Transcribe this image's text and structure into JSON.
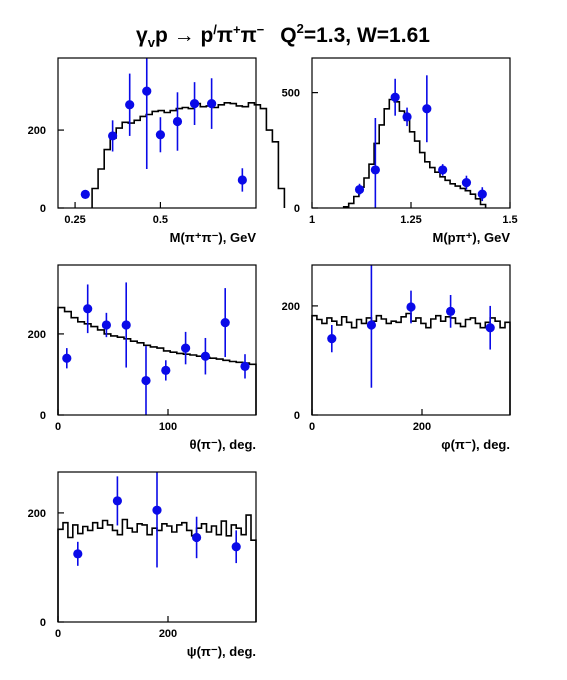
{
  "title": {
    "prefix": "γ",
    "sub": "v",
    "rest": "p → p",
    "prime": "/",
    "pi1": "π",
    "sup1": "+",
    "pi2": "π",
    "sup2": "−",
    "q": "Q",
    "qexp": "2",
    "qval": "=1.3, W=1.61"
  },
  "chart_data": [
    {
      "id": "m-pipi",
      "type": "histogram-with-points",
      "xlabel": "M(π⁺π⁻), GeV",
      "xlim": [
        0.2,
        0.78
      ],
      "ylim": [
        0,
        385
      ],
      "xticks": [
        {
          "v": 0.25,
          "t": "0.25"
        },
        {
          "v": 0.5,
          "t": "0.5"
        }
      ],
      "yticks": [
        {
          "v": 0,
          "t": "0"
        },
        {
          "v": 200,
          "t": "200"
        }
      ],
      "hist": {
        "x0": 0.3,
        "dx": 0.0176,
        "values": [
          50,
          100,
          150,
          180,
          205,
          220,
          218,
          225,
          235,
          240,
          248,
          250,
          245,
          250,
          255,
          258,
          255,
          268,
          260,
          262,
          258,
          265,
          270,
          268,
          262,
          260,
          270,
          265,
          255,
          200,
          170,
          50
        ]
      },
      "points": [
        {
          "x": 0.28,
          "y": 35,
          "err": 8
        },
        {
          "x": 0.36,
          "y": 185,
          "err": 40
        },
        {
          "x": 0.41,
          "y": 265,
          "err": 80
        },
        {
          "x": 0.46,
          "y": 300,
          "err": 200
        },
        {
          "x": 0.5,
          "y": 188,
          "err": 45
        },
        {
          "x": 0.55,
          "y": 222,
          "err": 75
        },
        {
          "x": 0.6,
          "y": 268,
          "err": 55
        },
        {
          "x": 0.65,
          "y": 268,
          "err": 65
        },
        {
          "x": 0.74,
          "y": 72,
          "err": 30
        }
      ]
    },
    {
      "id": "m-ppi",
      "type": "histogram-with-points",
      "xlabel": "M(pπ⁺), GeV",
      "xlim": [
        1.0,
        1.5
      ],
      "ylim": [
        0,
        650
      ],
      "xticks": [
        {
          "v": 1,
          "t": "1"
        },
        {
          "v": 1.25,
          "t": "1.25"
        },
        {
          "v": 1.5,
          "t": "1.5"
        }
      ],
      "yticks": [
        {
          "v": 0,
          "t": "0"
        },
        {
          "v": 500,
          "t": "500"
        }
      ],
      "hist": {
        "x0": 1.08,
        "dx": 0.0128,
        "values": [
          5,
          20,
          50,
          90,
          130,
          190,
          280,
          360,
          430,
          470,
          460,
          420,
          380,
          330,
          290,
          240,
          200,
          175,
          155,
          135,
          120,
          105,
          95,
          85,
          75,
          60,
          40,
          15
        ]
      },
      "points": [
        {
          "x": 1.12,
          "y": 80,
          "err": 25
        },
        {
          "x": 1.16,
          "y": 165,
          "err": 225
        },
        {
          "x": 1.21,
          "y": 480,
          "err": 80
        },
        {
          "x": 1.24,
          "y": 395,
          "err": 40
        },
        {
          "x": 1.29,
          "y": 430,
          "err": 145
        },
        {
          "x": 1.33,
          "y": 165,
          "err": 25
        },
        {
          "x": 1.39,
          "y": 110,
          "err": 30
        },
        {
          "x": 1.43,
          "y": 60,
          "err": 30
        }
      ]
    },
    {
      "id": "theta",
      "type": "histogram-with-points",
      "xlabel": "θ(π⁻), deg.",
      "xlim": [
        0,
        180
      ],
      "ylim": [
        0,
        370
      ],
      "xticks": [
        {
          "v": 0,
          "t": "0"
        },
        {
          "v": 100,
          "t": "100"
        }
      ],
      "yticks": [
        {
          "v": 0,
          "t": "0"
        },
        {
          "v": 200,
          "t": "200"
        }
      ],
      "hist": {
        "x0": 0,
        "dx": 6,
        "values": [
          265,
          255,
          240,
          230,
          225,
          218,
          210,
          200,
          195,
          192,
          188,
          182,
          178,
          172,
          168,
          165,
          158,
          155,
          152,
          150,
          148,
          145,
          142,
          140,
          138,
          135,
          132,
          130,
          128,
          125
        ]
      },
      "points": [
        {
          "x": 8,
          "y": 140,
          "err": 25
        },
        {
          "x": 27,
          "y": 262,
          "err": 60
        },
        {
          "x": 44,
          "y": 222,
          "err": 30
        },
        {
          "x": 62,
          "y": 222,
          "err": 105
        },
        {
          "x": 80,
          "y": 85,
          "err": 85
        },
        {
          "x": 98,
          "y": 110,
          "err": 25
        },
        {
          "x": 116,
          "y": 165,
          "err": 40
        },
        {
          "x": 134,
          "y": 145,
          "err": 45
        },
        {
          "x": 152,
          "y": 228,
          "err": 85
        },
        {
          "x": 170,
          "y": 120,
          "err": 30
        }
      ]
    },
    {
      "id": "phi",
      "type": "histogram-with-points",
      "xlabel": "φ(π⁻), deg.",
      "xlim": [
        0,
        360
      ],
      "ylim": [
        0,
        275
      ],
      "xticks": [
        {
          "v": 0,
          "t": "0"
        },
        {
          "v": 200,
          "t": "200"
        }
      ],
      "yticks": [
        {
          "v": 0,
          "t": "0"
        },
        {
          "v": 200,
          "t": "200"
        }
      ],
      "hist": {
        "x0": 0,
        "dx": 9,
        "values": [
          182,
          175,
          168,
          178,
          172,
          165,
          180,
          170,
          160,
          175,
          168,
          178,
          172,
          182,
          176,
          168,
          172,
          170,
          180,
          186,
          172,
          178,
          168,
          160,
          176,
          182,
          172,
          180,
          178,
          168,
          162,
          175,
          178,
          168,
          160,
          170,
          178,
          172,
          160,
          170
        ]
      },
      "points": [
        {
          "x": 36,
          "y": 140,
          "err": 25
        },
        {
          "x": 108,
          "y": 165,
          "err": 115
        },
        {
          "x": 180,
          "y": 198,
          "err": 30
        },
        {
          "x": 252,
          "y": 190,
          "err": 30
        },
        {
          "x": 324,
          "y": 160,
          "err": 40
        }
      ]
    },
    {
      "id": "psi",
      "type": "histogram-with-points",
      "xlabel": "ψ(π⁻), deg.",
      "xlim": [
        0,
        360
      ],
      "ylim": [
        0,
        275
      ],
      "xticks": [
        {
          "v": 0,
          "t": "0"
        },
        {
          "v": 200,
          "t": "200"
        }
      ],
      "yticks": [
        {
          "v": 0,
          "t": "0"
        },
        {
          "v": 200,
          "t": "200"
        }
      ],
      "hist": {
        "x0": 0,
        "dx": 9,
        "values": [
          170,
          182,
          155,
          178,
          162,
          175,
          168,
          182,
          172,
          186,
          178,
          168,
          160,
          188,
          172,
          165,
          180,
          178,
          160,
          172,
          168,
          180,
          176,
          165,
          178,
          182,
          168,
          158,
          172,
          180,
          165,
          176,
          160,
          185,
          158,
          178,
          172,
          160,
          196,
          150
        ]
      },
      "points": [
        {
          "x": 36,
          "y": 125,
          "err": 22
        },
        {
          "x": 108,
          "y": 222,
          "err": 45
        },
        {
          "x": 180,
          "y": 205,
          "err": 105
        },
        {
          "x": 252,
          "y": 155,
          "err": 38
        },
        {
          "x": 324,
          "y": 138,
          "err": 30
        }
      ]
    }
  ]
}
